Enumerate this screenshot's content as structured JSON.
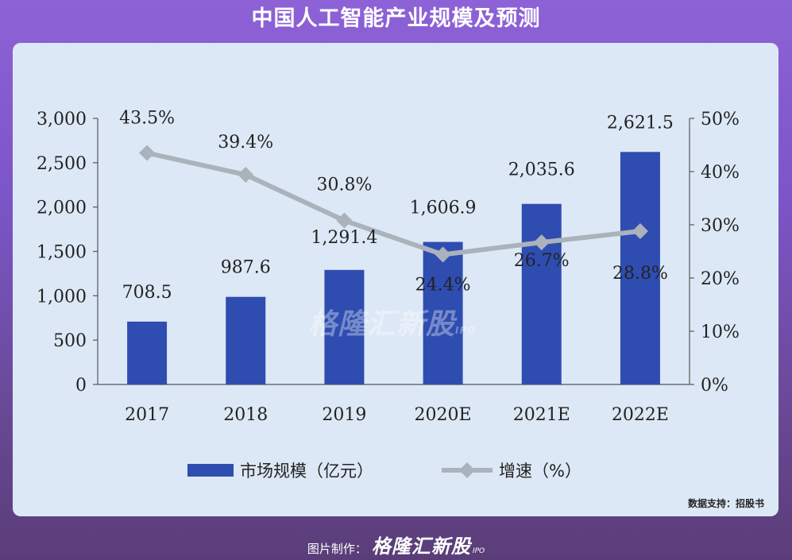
{
  "title": "中国人工智能产业规模及预测",
  "source": "数据支持：招股书",
  "footer": {
    "label": "图片制作：",
    "brand": "格隆汇新股",
    "brand_suffix": "IPO"
  },
  "watermark": {
    "text": "格隆汇新股",
    "suffix": "IPO"
  },
  "colors": {
    "bar": "#2f4db0",
    "line": "#aab2bc",
    "card": "#dde8f6"
  },
  "chart_data": {
    "type": "bar",
    "categories": [
      "2017",
      "2018",
      "2019",
      "2020E",
      "2021E",
      "2022E"
    ],
    "series": [
      {
        "name": "市场规模（亿元）",
        "type": "bar",
        "axis": "left",
        "values": [
          708.5,
          987.6,
          1291.4,
          1606.9,
          2035.6,
          2621.5
        ],
        "labels": [
          "708.5",
          "987.6",
          "1,291.4",
          "1,606.9",
          "2,035.6",
          "2,621.5"
        ]
      },
      {
        "name": "增速（%）",
        "type": "line",
        "axis": "right",
        "values": [
          43.5,
          39.4,
          30.8,
          24.4,
          26.7,
          28.8
        ],
        "labels": [
          "43.5%",
          "39.4%",
          "30.8%",
          "24.4%",
          "26.7%",
          "28.8%"
        ]
      }
    ],
    "ylim_left": [
      0,
      3000
    ],
    "yticks_left": [
      "0",
      "500",
      "1,000",
      "1,500",
      "2,000",
      "2,500",
      "3,000"
    ],
    "ylim_right": [
      0,
      50
    ],
    "yticks_right": [
      "0%",
      "10%",
      "20%",
      "30%",
      "40%",
      "50%"
    ],
    "grid": false,
    "legend_position": "bottom"
  }
}
